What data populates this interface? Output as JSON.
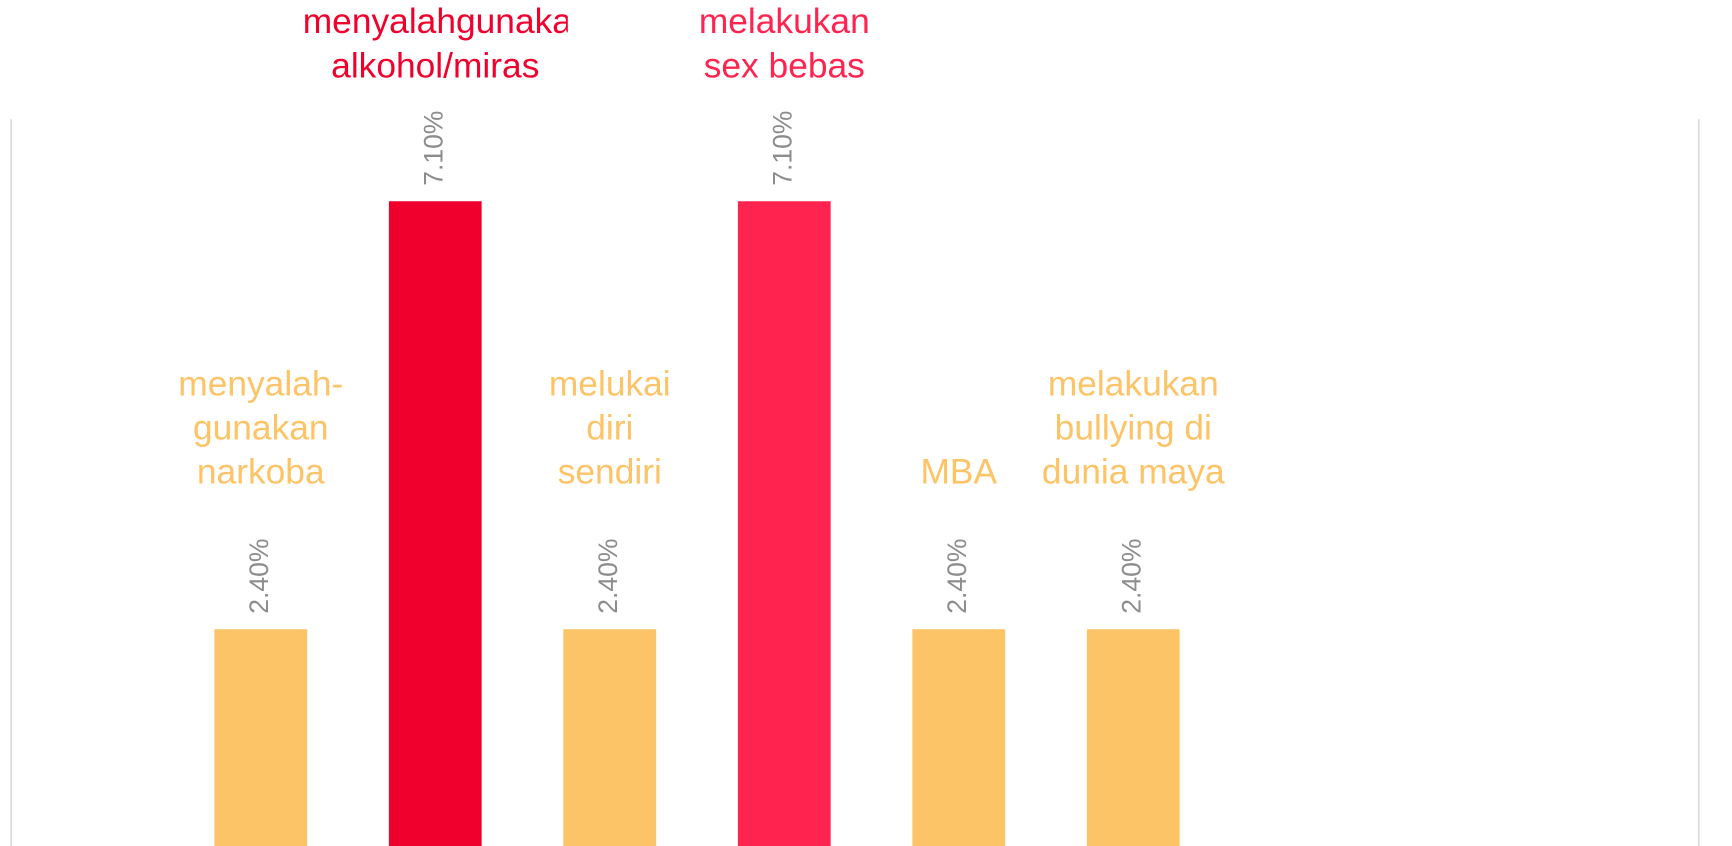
{
  "chart_data": {
    "type": "bar",
    "categories": [
      "menyalah-\ngunakan\nnarkoba",
      "menyalahgunakan\nalkohol/miras",
      "melukai\ndiri\nsendiri",
      "melakukan\nsex bebas",
      "MBA",
      "melakukan\nbullying di\ndunia maya"
    ],
    "values": [
      2.4,
      7.1,
      2.4,
      7.1,
      2.4,
      2.4
    ],
    "value_labels": [
      "2.40%",
      "7.10%",
      "2.40%",
      "7.10%",
      "2.40%",
      "2.40%"
    ],
    "colors": [
      "#fdc367",
      "#f0002d",
      "#fdc367",
      "#ff2450",
      "#fdc367",
      "#fdc367"
    ],
    "ylim": [
      0,
      8
    ]
  }
}
